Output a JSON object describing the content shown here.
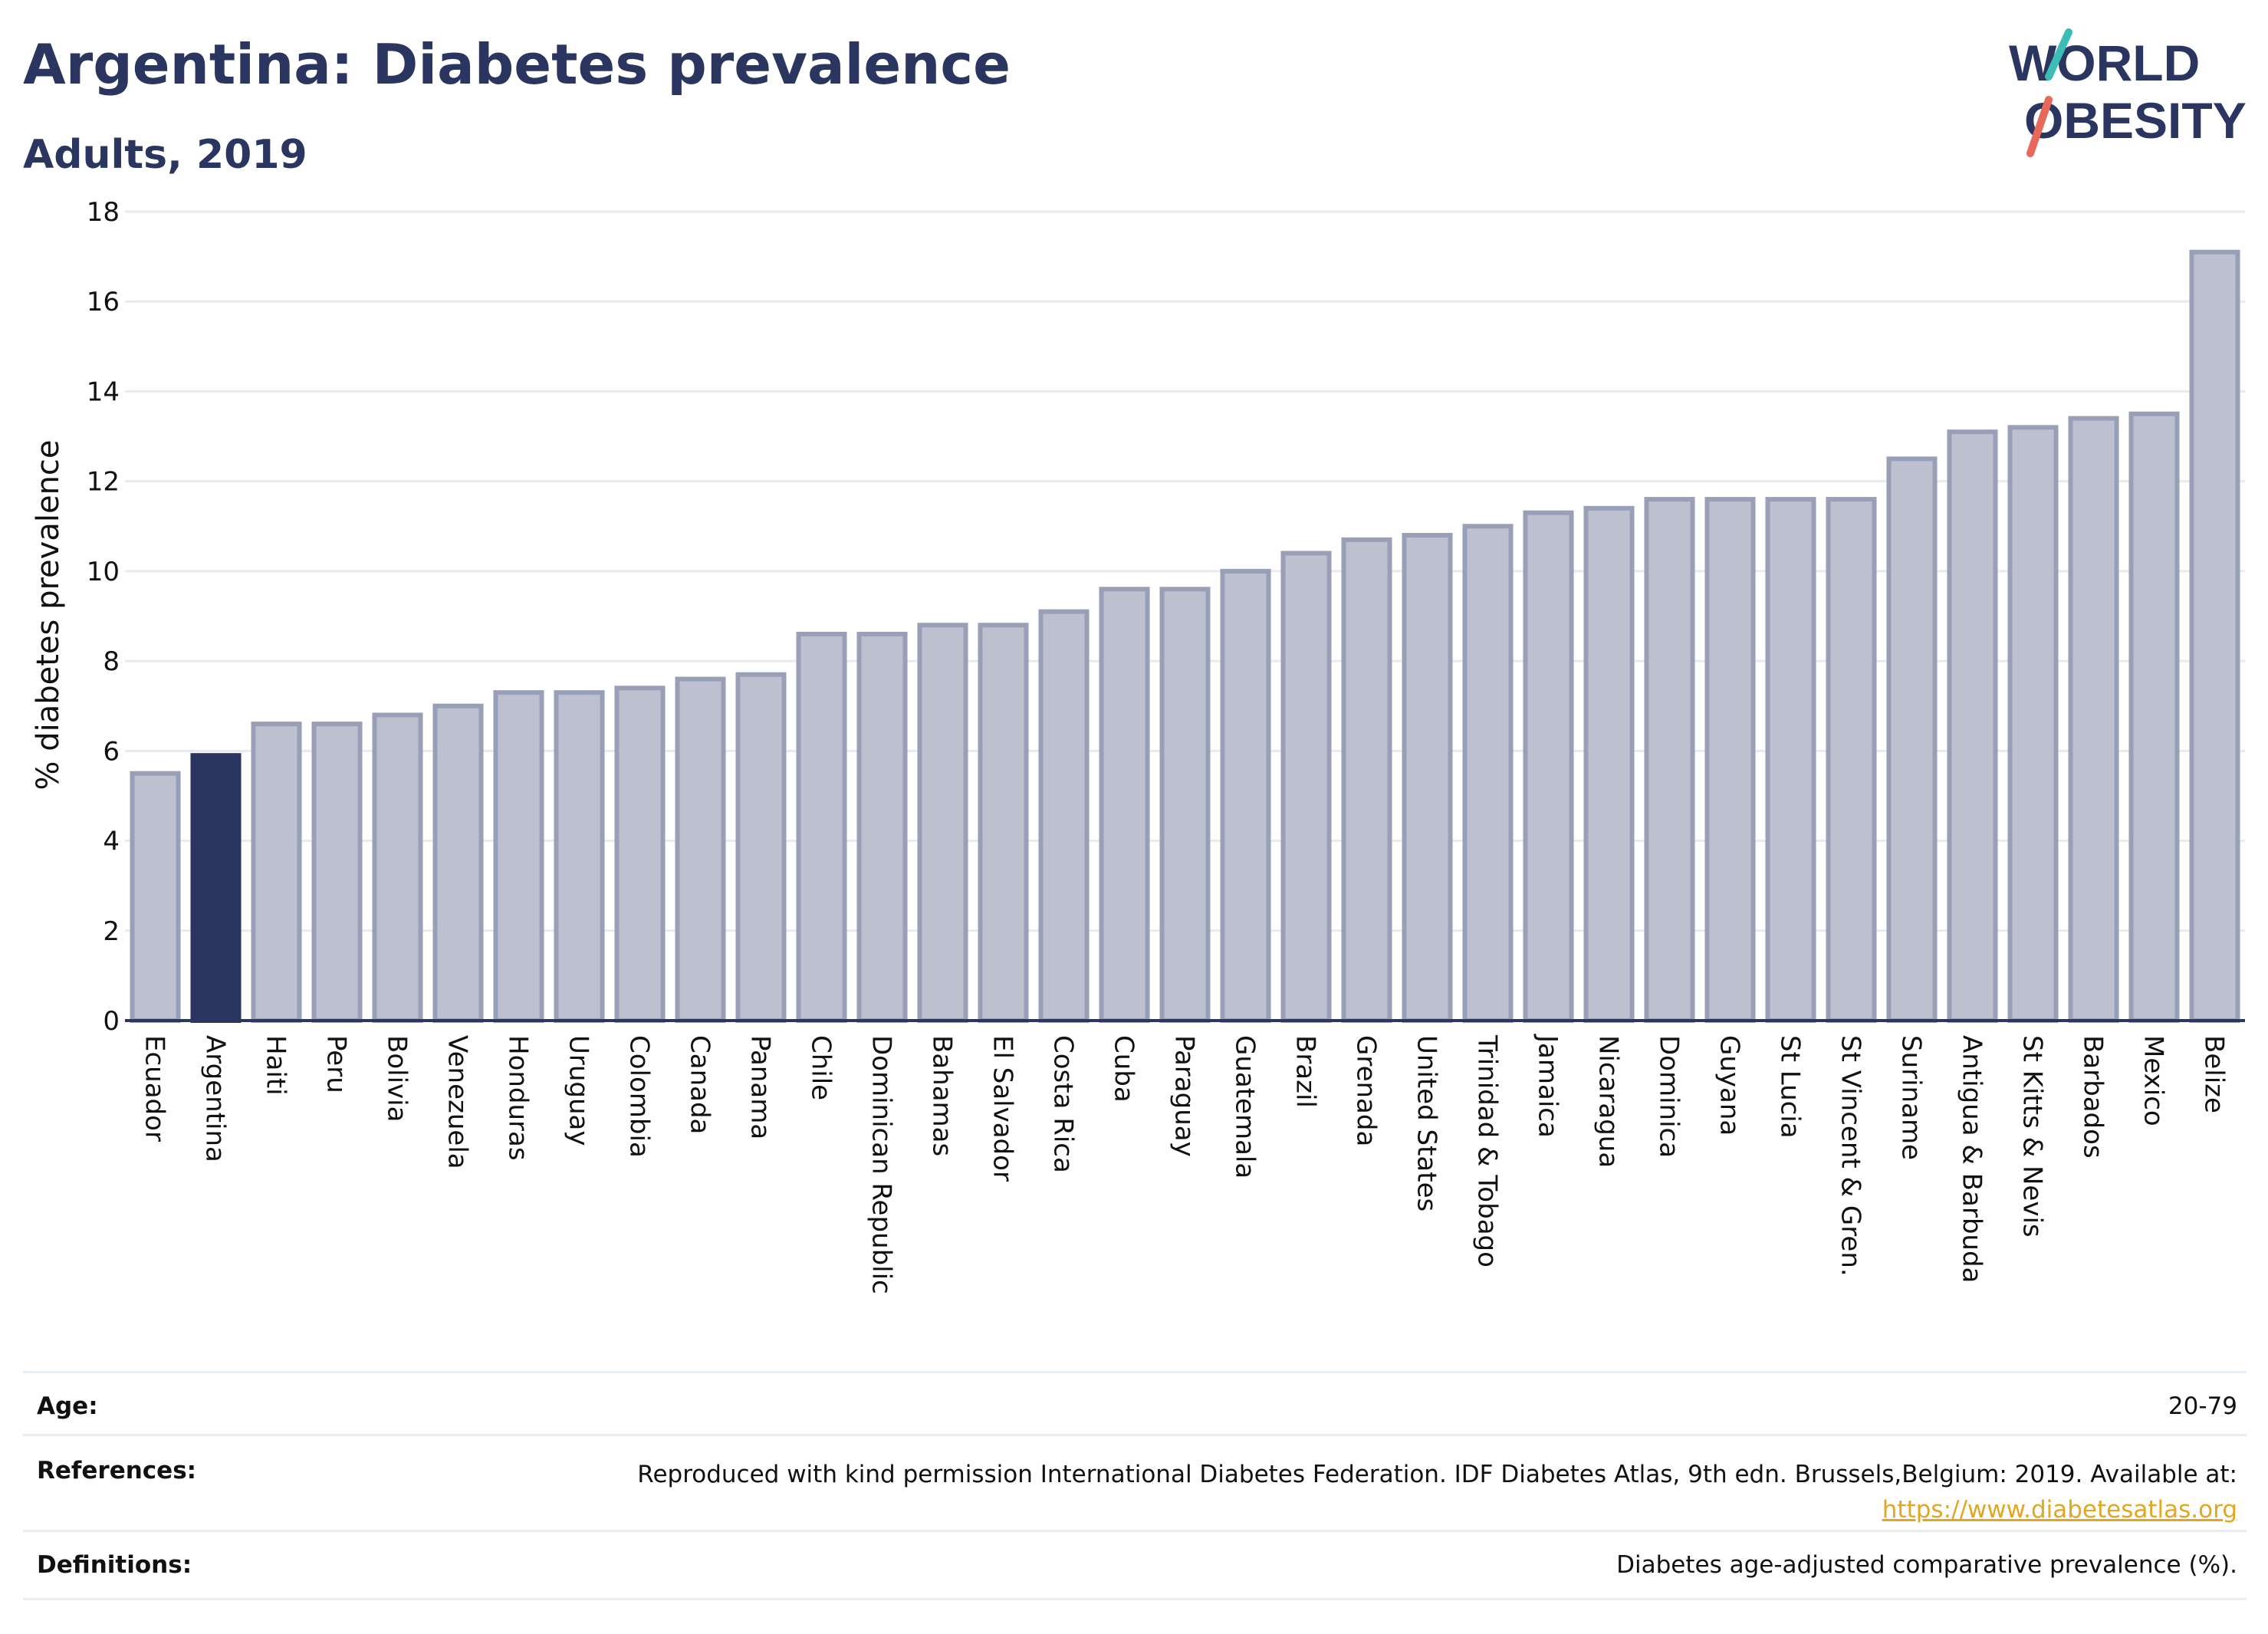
{
  "title": "Argentina: Diabetes prevalence",
  "subtitle": "Adults, 2019",
  "logo": {
    "line1": "WORLD",
    "line2": "OBESITY"
  },
  "colors": {
    "bar": "#bdc0cf",
    "bar_edge": "#9a9fb8",
    "highlight": "#2b3660",
    "title": "#2b3660",
    "link": "#e1a722",
    "logo_teal": "#3cbcb4",
    "logo_red": "#e8685a"
  },
  "chart_data": {
    "type": "bar",
    "title": "Argentina: Diabetes prevalence",
    "subtitle": "Adults, 2019",
    "ylabel": "% diabetes prevalence",
    "xlabel": "",
    "ylim": [
      0,
      18
    ],
    "yticks": [
      "0",
      "2",
      "4",
      "6",
      "8",
      "10",
      "12",
      "14",
      "16",
      "18"
    ],
    "grid": true,
    "highlight": "Argentina",
    "categories": [
      "Ecuador",
      "Argentina",
      "Haiti",
      "Peru",
      "Bolivia",
      "Venezuela",
      "Honduras",
      "Uruguay",
      "Colombia",
      "Canada",
      "Panama",
      "Chile",
      "Dominican Republic",
      "Bahamas",
      "El Salvador",
      "Costa Rica",
      "Cuba",
      "Paraguay",
      "Guatemala",
      "Brazil",
      "Grenada",
      "United States",
      "Trinidad & Tobago",
      "Jamaica",
      "Nicaragua",
      "Dominica",
      "Guyana",
      "St Lucia",
      "St Vincent & Gren.",
      "Suriname",
      "Antigua & Barbuda",
      "St Kitts & Nevis",
      "Barbados",
      "Mexico",
      "Belize"
    ],
    "values": [
      5.5,
      5.9,
      6.6,
      6.6,
      6.8,
      7.0,
      7.3,
      7.3,
      7.4,
      7.6,
      7.7,
      8.6,
      8.6,
      8.8,
      8.8,
      9.1,
      9.6,
      9.6,
      10.0,
      10.4,
      10.7,
      10.8,
      11.0,
      11.3,
      11.4,
      11.6,
      11.6,
      11.6,
      11.6,
      12.5,
      13.1,
      13.2,
      13.4,
      13.5,
      17.1
    ]
  },
  "footer": {
    "age": {
      "label": "Age:",
      "value": "20-79"
    },
    "references": {
      "label": "References:",
      "text": "Reproduced with kind permission International Diabetes Federation. IDF Diabetes Atlas, 9th edn. Brussels,Belgium: 2019. Available at:",
      "link": "https://www.diabetesatlas.org"
    },
    "definitions": {
      "label": "Definitions:",
      "value": "Diabetes age-adjusted comparative prevalence (%)."
    }
  }
}
